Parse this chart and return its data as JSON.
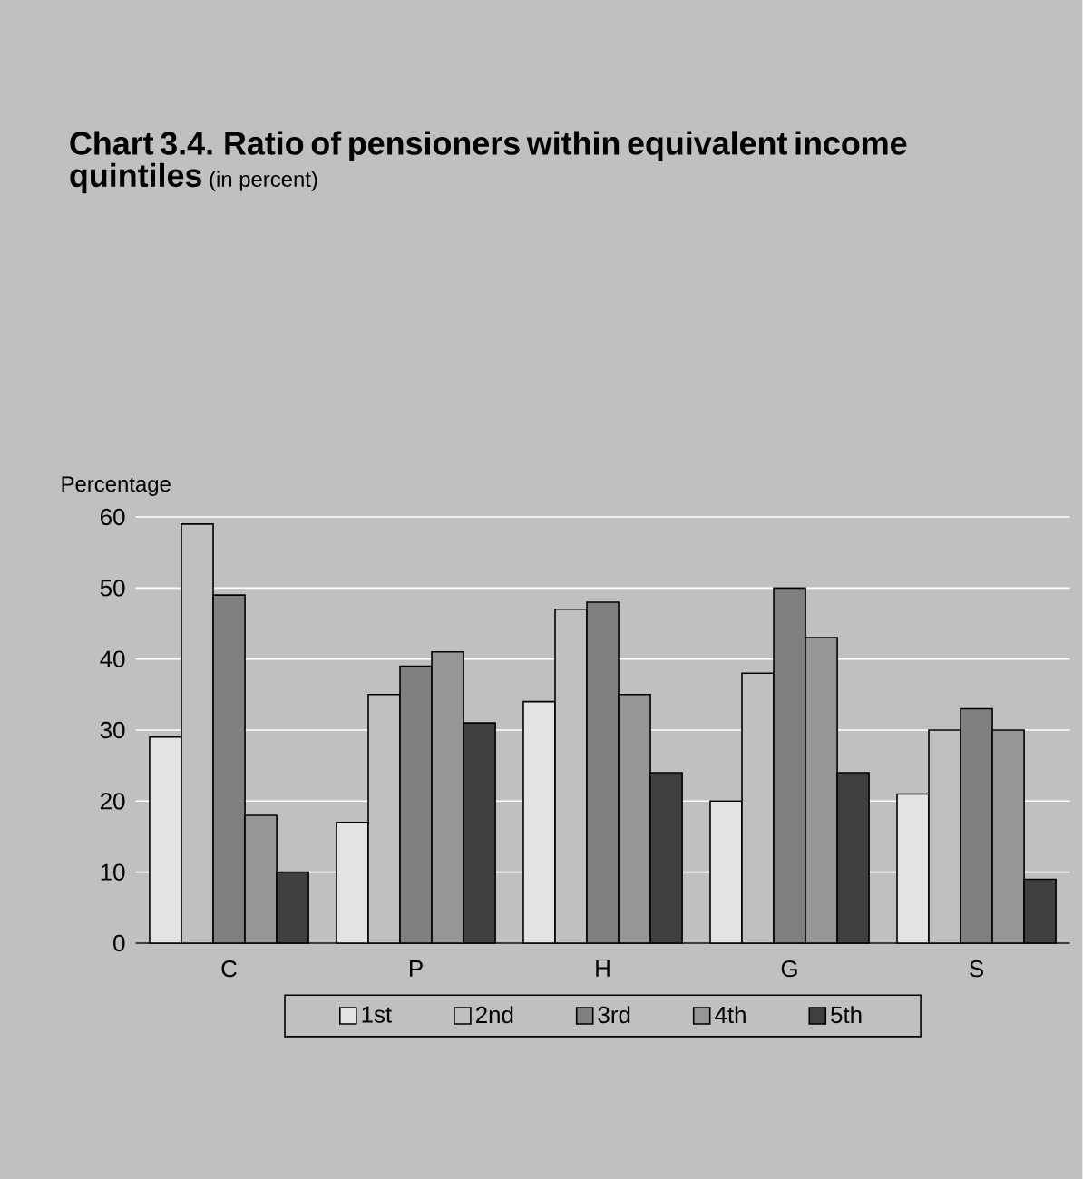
{
  "chart_data": {
    "type": "bar",
    "title": "Chart 3.4.  Ratio of pensioners within equivalent income quintiles",
    "subtitle": "(in percent)",
    "ylabel": "Percentage",
    "categories": [
      "C",
      "P",
      "H",
      "G",
      "S"
    ],
    "series": [
      {
        "name": "1st",
        "color": "#e3e3e3",
        "values": [
          29,
          17,
          34,
          20,
          21
        ]
      },
      {
        "name": "2nd",
        "color": "#c0c0c0",
        "values": [
          59,
          35,
          47,
          38,
          30
        ]
      },
      {
        "name": "3rd",
        "color": "#808080",
        "values": [
          49,
          39,
          48,
          50,
          33
        ]
      },
      {
        "name": "4th",
        "color": "#969696",
        "values": [
          18,
          41,
          35,
          43,
          30
        ]
      },
      {
        "name": "5th",
        "color": "#404040",
        "values": [
          10,
          31,
          24,
          24,
          9
        ]
      }
    ],
    "ylim": [
      0,
      60
    ],
    "yticks": [
      0,
      10,
      20,
      30,
      40,
      50,
      60
    ],
    "grid": "y",
    "legend": "bottom"
  }
}
